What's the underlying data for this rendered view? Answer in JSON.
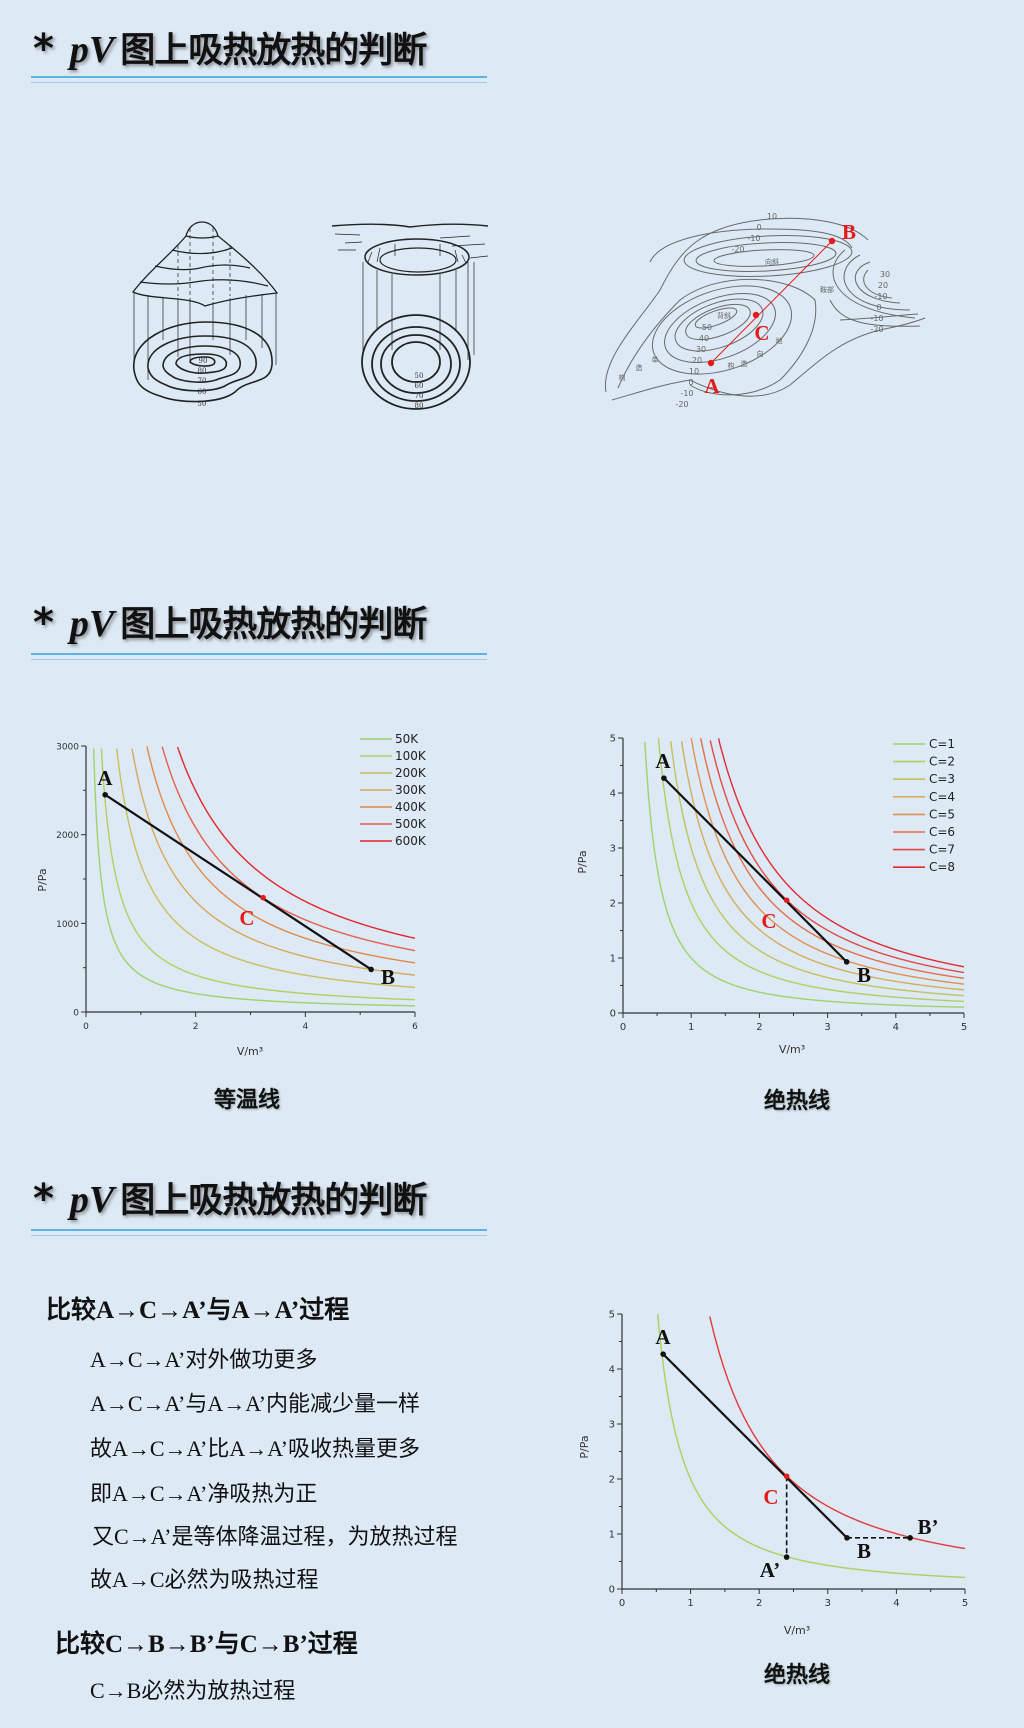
{
  "slides": [
    {
      "star": "*",
      "pv": "pV",
      "title": "图上吸热放热的判断"
    },
    {
      "star": "*",
      "pv": "pV",
      "title": "图上吸热放热的判断"
    },
    {
      "star": "*",
      "pv": "pV",
      "title": "图上吸热放热的判断"
    }
  ],
  "contour_figures": {
    "hill_labels": [
      "90",
      "80",
      "70",
      "60",
      "50"
    ],
    "crater_labels": [
      "50",
      "60",
      "70",
      "80"
    ],
    "map_labels": [
      "10",
      "0",
      "-10",
      "-20",
      "向斜",
      "背斜",
      "鞍部",
      "30",
      "20",
      "-10",
      "0",
      "-10",
      "-20",
      "50",
      "40",
      "30",
      "20",
      "10",
      "0",
      "-10",
      "-20",
      "构",
      "造",
      "单",
      "构",
      "造",
      "地",
      "向"
    ],
    "map_points": {
      "A": "A",
      "B": "B",
      "C": "C"
    },
    "marker_color": "#e31b1b"
  },
  "captions": {
    "isothermal": "等温线",
    "adiabatic": "绝热线",
    "adiabatic_bottom": "绝热线"
  },
  "comparison": {
    "heading1": "比较A→C→A’与A→A’过程",
    "lines1": [
      "A→C→A’对外做功更多",
      "A→C→A’与A→A’内能减少量一样",
      "故A→C→A’比A→A’吸收热量更多",
      "即A→C→A’净吸热为正",
      "又C→A’是等体降温过程，为放热过程",
      "故A→C必然为吸热过程"
    ],
    "heading2": "比较C→B→B’与C→B’过程",
    "lines2": [
      "C→B必然为放热过程"
    ]
  },
  "chart_data": [
    {
      "type": "line",
      "title": "",
      "xlabel": "V/m³",
      "ylabel": "P/Pa",
      "xlim": [
        0,
        6
      ],
      "ylim": [
        0,
        3000
      ],
      "xticks": [
        0,
        2,
        4,
        6
      ],
      "yticks": [
        0,
        1000,
        2000,
        3000
      ],
      "grid": false,
      "legend": "top-right",
      "curve_form": "P = k / V",
      "series": [
        {
          "name": "50K",
          "k": 415.7,
          "color": "#9dd36c"
        },
        {
          "name": "100K",
          "k": 831.4,
          "color": "#b4cf60"
        },
        {
          "name": "200K",
          "k": 1662.8,
          "color": "#c8bf5e"
        },
        {
          "name": "300K",
          "k": 2494.2,
          "color": "#d8a85a"
        },
        {
          "name": "400K",
          "k": 3325.6,
          "color": "#e2884a"
        },
        {
          "name": "500K",
          "k": 4157.0,
          "color": "#e4604a"
        },
        {
          "name": "600K",
          "k": 4988.4,
          "color": "#e3262a"
        }
      ],
      "points": [
        {
          "label": "A",
          "x": 0.35,
          "y": 2450,
          "color": "#111111"
        },
        {
          "label": "C",
          "x": 3.23,
          "y": 1290,
          "color": "#e31b1b"
        },
        {
          "label": "B",
          "x": 5.2,
          "y": 480,
          "color": "#111111"
        }
      ],
      "segments": [
        {
          "from": "A",
          "to": "B",
          "style": "solid"
        }
      ]
    },
    {
      "type": "line",
      "title": "",
      "xlabel": "V/m³",
      "ylabel": "P/Pa",
      "xlim": [
        0,
        5
      ],
      "ylim": [
        0,
        5
      ],
      "xticks": [
        0,
        1,
        2,
        3,
        4,
        5
      ],
      "yticks": [
        0,
        1,
        2,
        3,
        4,
        5
      ],
      "grid": false,
      "legend": "top-right",
      "curve_form": "P = C / V^1.4",
      "gamma": 1.4,
      "series": [
        {
          "name": "C=1",
          "k": 1,
          "color": "#9dd36c"
        },
        {
          "name": "C=2",
          "k": 2,
          "color": "#aed060"
        },
        {
          "name": "C=3",
          "k": 3,
          "color": "#c2c25e"
        },
        {
          "name": "C=4",
          "k": 4,
          "color": "#d4ad5a"
        },
        {
          "name": "C=5",
          "k": 5,
          "color": "#df9150"
        },
        {
          "name": "C=6",
          "k": 6,
          "color": "#e36e48"
        },
        {
          "name": "C=7",
          "k": 7,
          "color": "#e34a40"
        },
        {
          "name": "C=8",
          "k": 8,
          "color": "#e02a34"
        }
      ],
      "points": [
        {
          "label": "A",
          "x": 0.6,
          "y": 4.27,
          "color": "#111111"
        },
        {
          "label": "C",
          "x": 2.4,
          "y": 2.05,
          "color": "#e31b1b"
        },
        {
          "label": "B",
          "x": 3.28,
          "y": 0.93,
          "color": "#111111"
        }
      ],
      "segments": [
        {
          "from": "A",
          "to": "B",
          "style": "solid"
        }
      ]
    },
    {
      "type": "line",
      "title": "",
      "xlabel": "V/m³",
      "ylabel": "P/Pa",
      "xlim": [
        0,
        5
      ],
      "ylim": [
        0,
        5
      ],
      "xticks": [
        0,
        1,
        2,
        3,
        4,
        5
      ],
      "yticks": [
        0,
        1,
        2,
        3,
        4,
        5
      ],
      "grid": false,
      "legend": "none",
      "curve_form": "P = C / V^1.4",
      "gamma": 1.4,
      "series": [
        {
          "k": 2,
          "color": "#a9d15e"
        },
        {
          "k": 7,
          "color": "#e3393a"
        }
      ],
      "points": [
        {
          "label": "A",
          "x": 0.6,
          "y": 4.27,
          "color": "#111111"
        },
        {
          "label": "C",
          "x": 2.4,
          "y": 2.05,
          "color": "#e31b1b"
        },
        {
          "label": "B",
          "x": 3.28,
          "y": 0.93,
          "color": "#111111"
        },
        {
          "label": "A’",
          "x": 2.4,
          "y": 0.58,
          "color": "#111111"
        },
        {
          "label": "B’",
          "x": 4.2,
          "y": 0.93,
          "color": "#111111"
        }
      ],
      "segments": [
        {
          "from": "A",
          "to": "B",
          "style": "solid"
        },
        {
          "from": "C",
          "to": "A’",
          "style": "dashed"
        },
        {
          "from": "B",
          "to": "B’",
          "style": "dashed"
        }
      ]
    }
  ]
}
